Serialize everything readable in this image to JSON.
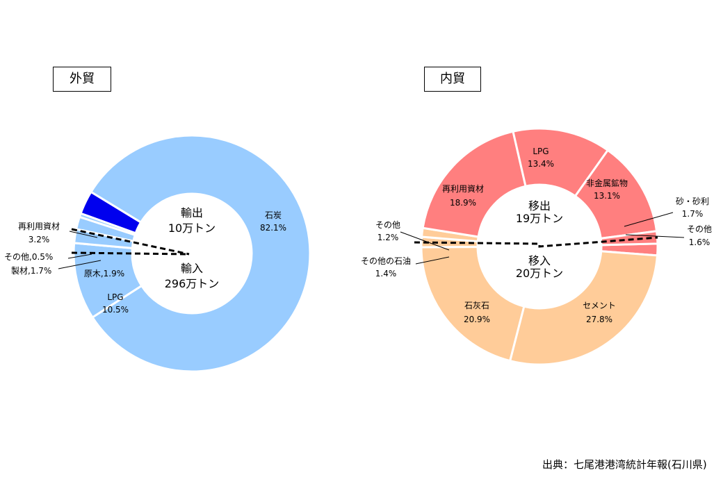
{
  "chart_data": [
    {
      "type": "donut",
      "title": "外貿",
      "center_top": [
        "輸出",
        "10万トン"
      ],
      "center_bottom": [
        "輸入",
        "296万トン"
      ],
      "slices": [
        {
          "name": "石炭",
          "value": 82.1,
          "label": "82.1%",
          "color": "#99CCFF"
        },
        {
          "name": "LPG",
          "value": 10.5,
          "label": "10.5%",
          "color": "#99CCFF"
        },
        {
          "name": "原木",
          "value": 1.9,
          "label": "原木,1.9%",
          "color": "#99CCFF"
        },
        {
          "name": "製材",
          "value": 1.7,
          "label": "製材,1.7%",
          "color": "#99CCFF"
        },
        {
          "name": "その他",
          "value": 0.5,
          "label": "その他,0.5%",
          "color": "#99CCFF"
        },
        {
          "name": "再利用資材",
          "value": 3.2,
          "label": "3.2%",
          "color": "#0000EE"
        }
      ]
    },
    {
      "type": "donut",
      "title": "内貿",
      "center_top": [
        "移出",
        "19万トン"
      ],
      "center_bottom": [
        "移入",
        "20万トン"
      ],
      "slices": [
        {
          "name": "その他",
          "value": 1.6,
          "label": "1.6%",
          "color": "#FF7F7F"
        },
        {
          "name": "セメント",
          "value": 27.8,
          "label": "27.8%",
          "color": "#FFCC99"
        },
        {
          "name": "石灰石",
          "value": 20.9,
          "label": "20.9%",
          "color": "#FFCC99"
        },
        {
          "name": "その他の石油",
          "value": 1.4,
          "label": "1.4%",
          "color": "#FFCC99"
        },
        {
          "name": "その他",
          "value": 1.2,
          "label": "1.2%",
          "color": "#FFCC99"
        },
        {
          "name": "再利用資材",
          "value": 18.9,
          "label": "18.9%",
          "color": "#FF7F7F"
        },
        {
          "name": "LPG",
          "value": 13.4,
          "label": "13.4%",
          "color": "#FF7F7F"
        },
        {
          "name": "非金属鉱物",
          "value": 13.1,
          "label": "13.1%",
          "color": "#FF7F7F"
        },
        {
          "name": "砂・砂利",
          "value": 1.7,
          "label": "1.7%",
          "color": "#FF7F7F"
        }
      ]
    }
  ],
  "source": "出典：七尾港港湾統計年報(石川県)"
}
